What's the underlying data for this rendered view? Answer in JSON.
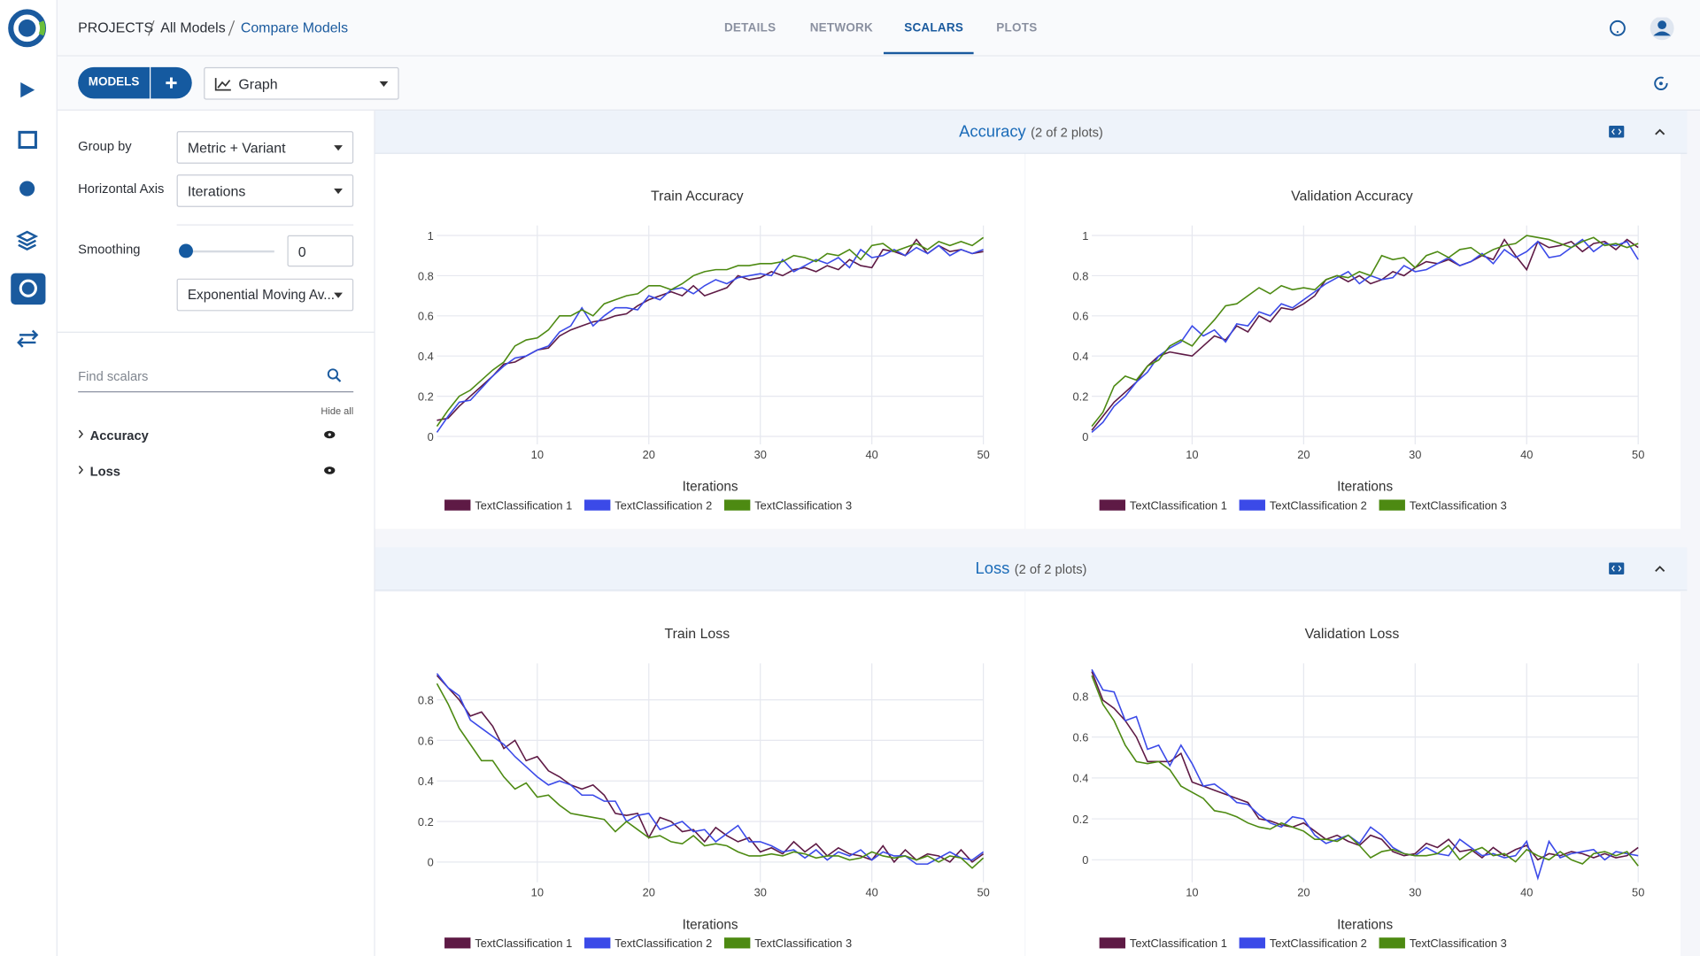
{
  "header": {
    "breadcrumb": [
      "PROJECTS",
      "All Models",
      "Compare Models"
    ],
    "tabs": [
      "DETAILS",
      "NETWORK",
      "SCALARS",
      "PLOTS"
    ]
  },
  "toolbar": {
    "models_button": "MODELS",
    "view_select": "Graph"
  },
  "settings": {
    "group_by_label": "Group by",
    "group_by": "Metric + Variant",
    "axis_label": "Horizontal Axis",
    "axis": "Iterations",
    "smoothing_label": "Smoothing",
    "smoothing": 0,
    "smoothing_method": "Exponential Moving Av...",
    "search_placeholder": "Find scalars",
    "hide_all": "Hide all",
    "metrics": [
      "Accuracy",
      "Loss"
    ]
  },
  "sections": [
    {
      "title": "Accuracy",
      "count": "(2 of 2 plots)"
    },
    {
      "title": "Loss",
      "count": "(2 of 2 plots)"
    }
  ],
  "chart_data": [
    {
      "type": "line",
      "title": "Train Accuracy",
      "x_label": "Iterations",
      "x": [
        1,
        2,
        3,
        4,
        5,
        6,
        7,
        8,
        9,
        10,
        11,
        12,
        13,
        14,
        15,
        16,
        17,
        18,
        19,
        20,
        21,
        22,
        23,
        24,
        25,
        26,
        27,
        28,
        29,
        30,
        31,
        32,
        33,
        34,
        35,
        36,
        37,
        38,
        39,
        40,
        41,
        42,
        43,
        44,
        45,
        46,
        47,
        48,
        49,
        50
      ],
      "xlim": [
        1,
        50
      ],
      "xticks": [
        10,
        20,
        30,
        40,
        50
      ],
      "ylim": [
        -0.04,
        1.05
      ],
      "yticks": [
        0,
        0.2,
        0.4,
        0.6,
        0.8,
        1
      ],
      "grid": true,
      "series": [
        {
          "name": "TextClassification 1",
          "color": "#5e1a45",
          "values": [
            0.08,
            0.09,
            0.15,
            0.2,
            0.25,
            0.3,
            0.36,
            0.37,
            0.4,
            0.43,
            0.44,
            0.5,
            0.53,
            0.55,
            0.57,
            0.58,
            0.6,
            0.61,
            0.65,
            0.68,
            0.7,
            0.72,
            0.7,
            0.75,
            0.7,
            0.72,
            0.74,
            0.8,
            0.78,
            0.79,
            0.82,
            0.8,
            0.83,
            0.84,
            0.82,
            0.85,
            0.83,
            0.88,
            0.85,
            0.84,
            0.93,
            0.92,
            0.9,
            0.98,
            0.91,
            0.95,
            0.92,
            0.93,
            0.91,
            0.92
          ]
        },
        {
          "name": "TextClassification 2",
          "color": "#3b4ae8",
          "values": [
            0.02,
            0.1,
            0.17,
            0.18,
            0.24,
            0.3,
            0.35,
            0.39,
            0.4,
            0.43,
            0.45,
            0.52,
            0.55,
            0.64,
            0.55,
            0.6,
            0.64,
            0.64,
            0.63,
            0.7,
            0.68,
            0.73,
            0.74,
            0.71,
            0.75,
            0.78,
            0.76,
            0.79,
            0.8,
            0.81,
            0.8,
            0.88,
            0.82,
            0.85,
            0.88,
            0.86,
            0.89,
            0.84,
            0.93,
            0.89,
            0.9,
            0.93,
            0.9,
            0.94,
            0.91,
            0.95,
            0.9,
            0.93,
            0.91,
            0.93
          ]
        },
        {
          "name": "TextClassification 3",
          "color": "#4d8a12",
          "values": [
            0.05,
            0.13,
            0.2,
            0.23,
            0.28,
            0.33,
            0.37,
            0.45,
            0.48,
            0.49,
            0.53,
            0.6,
            0.6,
            0.63,
            0.6,
            0.66,
            0.68,
            0.7,
            0.71,
            0.75,
            0.75,
            0.73,
            0.76,
            0.8,
            0.82,
            0.83,
            0.83,
            0.85,
            0.85,
            0.86,
            0.86,
            0.87,
            0.9,
            0.89,
            0.87,
            0.91,
            0.9,
            0.93,
            0.88,
            0.95,
            0.96,
            0.92,
            0.94,
            0.96,
            0.93,
            0.97,
            0.95,
            0.97,
            0.95,
            0.99
          ]
        }
      ]
    },
    {
      "type": "line",
      "title": "Validation Accuracy",
      "x_label": "Iterations",
      "x": [
        1,
        2,
        3,
        4,
        5,
        6,
        7,
        8,
        9,
        10,
        11,
        12,
        13,
        14,
        15,
        16,
        17,
        18,
        19,
        20,
        21,
        22,
        23,
        24,
        25,
        26,
        27,
        28,
        29,
        30,
        31,
        32,
        33,
        34,
        35,
        36,
        37,
        38,
        39,
        40,
        41,
        42,
        43,
        44,
        45,
        46,
        47,
        48,
        49,
        50
      ],
      "xlim": [
        1,
        50
      ],
      "xticks": [
        10,
        20,
        30,
        40,
        50
      ],
      "ylim": [
        -0.04,
        1.05
      ],
      "yticks": [
        0,
        0.2,
        0.4,
        0.6,
        0.8,
        1
      ],
      "grid": true,
      "series": [
        {
          "name": "TextClassification 1",
          "color": "#5e1a45",
          "values": [
            0.03,
            0.1,
            0.17,
            0.22,
            0.27,
            0.35,
            0.4,
            0.42,
            0.41,
            0.4,
            0.45,
            0.5,
            0.48,
            0.55,
            0.52,
            0.6,
            0.57,
            0.64,
            0.63,
            0.66,
            0.7,
            0.78,
            0.8,
            0.77,
            0.8,
            0.76,
            0.78,
            0.82,
            0.8,
            0.84,
            0.87,
            0.86,
            0.88,
            0.85,
            0.87,
            0.9,
            0.88,
            0.98,
            0.9,
            0.83,
            0.97,
            0.94,
            0.95,
            0.97,
            0.92,
            0.96,
            0.97,
            0.93,
            0.98,
            0.94
          ]
        },
        {
          "name": "TextClassification 2",
          "color": "#3b4ae8",
          "values": [
            0.02,
            0.07,
            0.15,
            0.2,
            0.27,
            0.32,
            0.4,
            0.44,
            0.47,
            0.55,
            0.5,
            0.53,
            0.47,
            0.56,
            0.55,
            0.62,
            0.6,
            0.66,
            0.64,
            0.68,
            0.72,
            0.76,
            0.79,
            0.82,
            0.76,
            0.8,
            0.78,
            0.79,
            0.85,
            0.82,
            0.83,
            0.86,
            0.89,
            0.85,
            0.87,
            0.91,
            0.86,
            0.93,
            0.89,
            0.92,
            0.97,
            0.89,
            0.9,
            0.94,
            0.98,
            0.92,
            0.96,
            0.95,
            0.97,
            0.88
          ]
        },
        {
          "name": "TextClassification 3",
          "color": "#4d8a12",
          "values": [
            0.05,
            0.12,
            0.25,
            0.3,
            0.28,
            0.35,
            0.38,
            0.45,
            0.48,
            0.45,
            0.52,
            0.58,
            0.65,
            0.66,
            0.7,
            0.74,
            0.71,
            0.75,
            0.73,
            0.74,
            0.73,
            0.78,
            0.8,
            0.79,
            0.82,
            0.8,
            0.9,
            0.88,
            0.89,
            0.84,
            0.9,
            0.92,
            0.89,
            0.93,
            0.94,
            0.9,
            0.93,
            0.95,
            0.96,
            1.0,
            0.99,
            0.98,
            0.96,
            0.94,
            0.97,
            0.99,
            0.95,
            0.96,
            0.94,
            0.96
          ]
        }
      ]
    },
    {
      "type": "line",
      "title": "Train Loss",
      "x_label": "Iterations",
      "x": [
        1,
        2,
        3,
        4,
        5,
        6,
        7,
        8,
        9,
        10,
        11,
        12,
        13,
        14,
        15,
        16,
        17,
        18,
        19,
        20,
        21,
        22,
        23,
        24,
        25,
        26,
        27,
        28,
        29,
        30,
        31,
        32,
        33,
        34,
        35,
        36,
        37,
        38,
        39,
        40,
        41,
        42,
        43,
        44,
        45,
        46,
        47,
        48,
        49,
        50
      ],
      "xlim": [
        1,
        50
      ],
      "xticks": [
        10,
        20,
        30,
        40,
        50
      ],
      "ylim": [
        -0.1,
        0.98
      ],
      "yticks": [
        0,
        0.2,
        0.4,
        0.6,
        0.8
      ],
      "grid": true,
      "series": [
        {
          "name": "TextClassification 1",
          "color": "#5e1a45",
          "values": [
            0.92,
            0.86,
            0.8,
            0.72,
            0.74,
            0.67,
            0.56,
            0.6,
            0.5,
            0.52,
            0.45,
            0.42,
            0.38,
            0.36,
            0.38,
            0.33,
            0.24,
            0.23,
            0.24,
            0.12,
            0.22,
            0.2,
            0.15,
            0.16,
            0.1,
            0.17,
            0.13,
            0.1,
            0.12,
            0.05,
            0.07,
            0.04,
            0.1,
            0.05,
            0.09,
            0.03,
            0.07,
            0.04,
            0.03,
            0.01,
            0.08,
            0.0,
            0.06,
            0.01,
            0.04,
            0.03,
            0.0,
            0.06,
            0.0,
            0.04
          ]
        },
        {
          "name": "TextClassification 2",
          "color": "#3b4ae8",
          "values": [
            0.93,
            0.86,
            0.82,
            0.7,
            0.66,
            0.62,
            0.58,
            0.52,
            0.47,
            0.42,
            0.38,
            0.4,
            0.38,
            0.33,
            0.33,
            0.3,
            0.3,
            0.2,
            0.23,
            0.24,
            0.16,
            0.18,
            0.2,
            0.15,
            0.16,
            0.1,
            0.14,
            0.18,
            0.1,
            0.1,
            0.08,
            0.05,
            0.06,
            0.02,
            0.06,
            0.01,
            0.05,
            0.03,
            0.06,
            0.01,
            0.05,
            0.03,
            0.03,
            -0.01,
            -0.01,
            0.02,
            0.05,
            0.02,
            0.01,
            0.05
          ]
        },
        {
          "name": "TextClassification 3",
          "color": "#4d8a12",
          "values": [
            0.88,
            0.78,
            0.66,
            0.58,
            0.5,
            0.5,
            0.42,
            0.36,
            0.39,
            0.32,
            0.33,
            0.28,
            0.24,
            0.23,
            0.22,
            0.21,
            0.15,
            0.2,
            0.16,
            0.12,
            0.13,
            0.1,
            0.09,
            0.13,
            0.08,
            0.09,
            0.08,
            0.05,
            0.03,
            0.03,
            0.04,
            0.03,
            0.05,
            0.04,
            0.02,
            0.03,
            0.03,
            0.01,
            0.02,
            0.05,
            0.03,
            0.02,
            0.03,
            0.01,
            0.03,
            0.0,
            0.03,
            0.02,
            -0.03,
            0.02
          ]
        }
      ]
    },
    {
      "type": "line",
      "title": "Validation Loss",
      "x_label": "Iterations",
      "x": [
        1,
        2,
        3,
        4,
        5,
        6,
        7,
        8,
        9,
        10,
        11,
        12,
        13,
        14,
        15,
        16,
        17,
        18,
        19,
        20,
        21,
        22,
        23,
        24,
        25,
        26,
        27,
        28,
        29,
        30,
        31,
        32,
        33,
        34,
        35,
        36,
        37,
        38,
        39,
        40,
        41,
        42,
        43,
        44,
        45,
        46,
        47,
        48,
        49,
        50
      ],
      "xlim": [
        1,
        50
      ],
      "xticks": [
        10,
        20,
        30,
        40,
        50
      ],
      "ylim": [
        -0.11,
        0.96
      ],
      "yticks": [
        0,
        0.2,
        0.4,
        0.6,
        0.8
      ],
      "grid": true,
      "series": [
        {
          "name": "TextClassification 1",
          "color": "#5e1a45",
          "values": [
            0.92,
            0.78,
            0.74,
            0.68,
            0.6,
            0.48,
            0.48,
            0.48,
            0.52,
            0.38,
            0.36,
            0.34,
            0.32,
            0.3,
            0.28,
            0.2,
            0.19,
            0.17,
            0.16,
            0.18,
            0.14,
            0.1,
            0.12,
            0.09,
            0.07,
            0.12,
            0.1,
            0.04,
            0.02,
            0.03,
            0.08,
            0.06,
            0.1,
            0.04,
            0.05,
            0.01,
            0.06,
            0.02,
            0.05,
            0.07,
            0.0,
            0.03,
            0.02,
            0.04,
            0.03,
            0.01,
            0.03,
            0.01,
            0.02,
            0.06
          ]
        },
        {
          "name": "TextClassification 2",
          "color": "#3b4ae8",
          "values": [
            0.93,
            0.83,
            0.82,
            0.68,
            0.7,
            0.54,
            0.56,
            0.46,
            0.56,
            0.47,
            0.36,
            0.37,
            0.33,
            0.28,
            0.27,
            0.22,
            0.18,
            0.16,
            0.21,
            0.2,
            0.12,
            0.08,
            0.1,
            0.12,
            0.08,
            0.16,
            0.12,
            0.06,
            0.03,
            0.02,
            0.06,
            0.03,
            0.02,
            0.1,
            0.06,
            0.02,
            0.03,
            0.01,
            0.02,
            0.09,
            -0.09,
            0.09,
            0.01,
            0.03,
            0.04,
            0.05,
            0.0,
            0.04,
            0.03,
            0.02
          ]
        },
        {
          "name": "TextClassification 3",
          "color": "#4d8a12",
          "values": [
            0.9,
            0.76,
            0.68,
            0.56,
            0.48,
            0.47,
            0.48,
            0.44,
            0.36,
            0.33,
            0.3,
            0.24,
            0.23,
            0.21,
            0.18,
            0.16,
            0.15,
            0.18,
            0.16,
            0.14,
            0.1,
            0.1,
            0.09,
            0.12,
            0.07,
            0.01,
            0.04,
            0.05,
            0.03,
            0.02,
            0.02,
            0.03,
            0.07,
            0.0,
            0.04,
            0.06,
            0.02,
            0.03,
            -0.01,
            0.05,
            0.02,
            0.0,
            0.04,
            0.0,
            -0.02,
            0.03,
            0.04,
            0.02,
            0.04,
            -0.03
          ]
        }
      ]
    }
  ]
}
